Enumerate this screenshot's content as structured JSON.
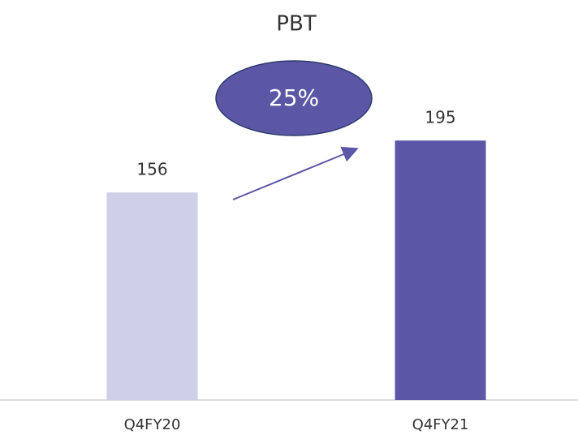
{
  "chart_data": {
    "type": "bar",
    "title": "PBT",
    "categories": [
      "Q4FY20",
      "Q4FY21"
    ],
    "values": [
      156,
      195
    ],
    "colors": [
      "#d0cfe8",
      "#5b57a6"
    ],
    "ylim": [
      0,
      200
    ],
    "annotation": "25%"
  }
}
